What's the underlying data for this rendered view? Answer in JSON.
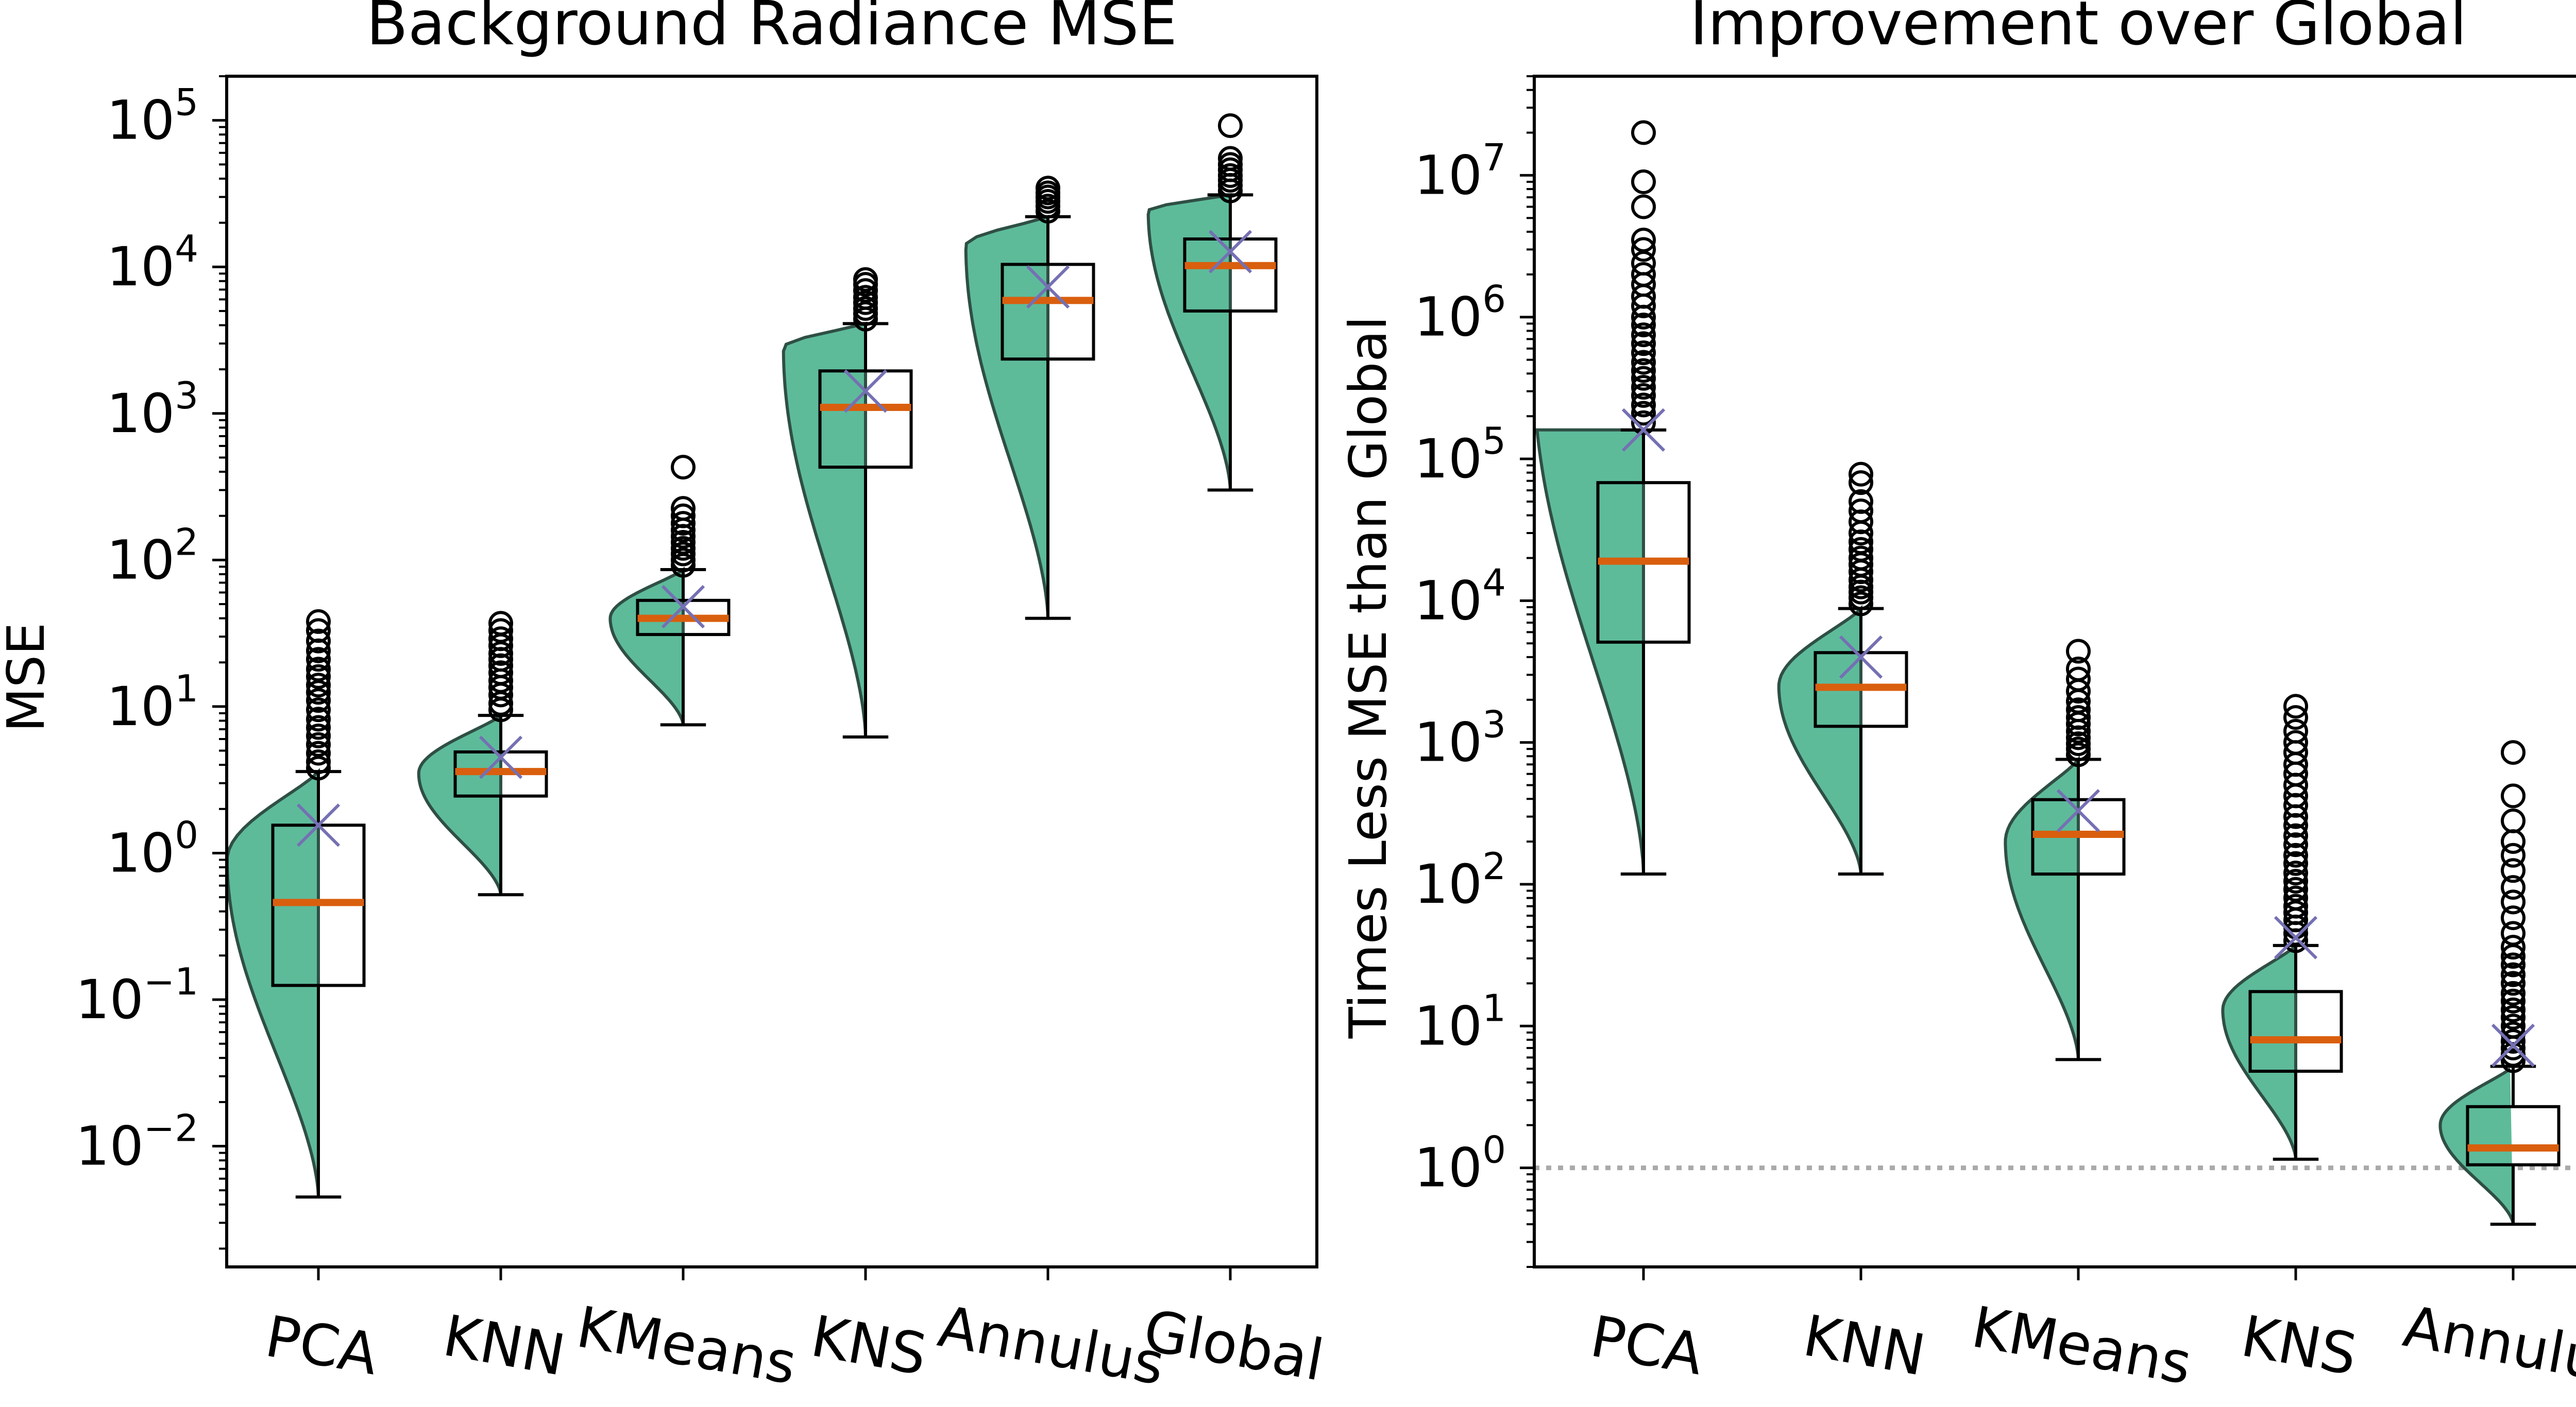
{
  "chart_data": [
    {
      "type": "box-violin",
      "title": "Background Radiance MSE",
      "xlabel": "",
      "ylabel": "MSE",
      "yscale": "log",
      "ylim": [
        0.0015,
        200000
      ],
      "yticks": [
        {
          "value": 0.01,
          "base": "10",
          "exp": "−2"
        },
        {
          "value": 0.1,
          "base": "10",
          "exp": "−1"
        },
        {
          "value": 1,
          "base": "10",
          "exp": "0"
        },
        {
          "value": 10,
          "base": "10",
          "exp": "1"
        },
        {
          "value": 100,
          "base": "10",
          "exp": "2"
        },
        {
          "value": 1000,
          "base": "10",
          "exp": "3"
        },
        {
          "value": 10000,
          "base": "10",
          "exp": "4"
        },
        {
          "value": 100000,
          "base": "10",
          "exp": "5"
        }
      ],
      "categories": [
        "PCA",
        "KNN",
        "KMeans",
        "KNS",
        "Annulus",
        "Global"
      ],
      "boxes": [
        {
          "name": "PCA",
          "whisker_low": 0.0045,
          "q1": 0.125,
          "median": 0.46,
          "q3": 1.55,
          "whisker_high": 3.6,
          "mean": 1.55,
          "violin_max_half_width": 0.5,
          "violin_peak_at": 0.9,
          "outliers": [
            3.8,
            4.2,
            4.8,
            5.5,
            6.3,
            7.2,
            8.2,
            9.5,
            11,
            12.5,
            14,
            16,
            18,
            21,
            24,
            28,
            33,
            38
          ]
        },
        {
          "name": "KNN",
          "whisker_low": 0.52,
          "q1": 2.45,
          "median": 3.6,
          "q3": 4.9,
          "whisker_high": 8.7,
          "mean": 4.5,
          "violin_max_half_width": 0.45,
          "violin_peak_at": 3.5,
          "outliers": [
            9.5,
            10.5,
            12,
            13.5,
            15,
            17,
            19,
            21,
            23,
            26,
            29,
            33,
            37
          ]
        },
        {
          "name": "KMeans",
          "whisker_low": 7.5,
          "q1": 31,
          "median": 40,
          "q3": 53,
          "whisker_high": 86,
          "mean": 48,
          "violin_max_half_width": 0.4,
          "violin_peak_at": 40,
          "outliers": [
            92,
            100,
            110,
            120,
            132,
            145,
            160,
            178,
            200,
            225,
            430
          ]
        },
        {
          "name": "KNS",
          "whisker_low": 6.2,
          "q1": 430,
          "median": 1100,
          "q3": 1950,
          "whisker_high": 4100,
          "mean": 1420,
          "violin_max_half_width": 0.45,
          "violin_peak_at": 2800,
          "outliers": [
            4400,
            4800,
            5200,
            5700,
            6200,
            6900,
            7600,
            8200
          ]
        },
        {
          "name": "Annulus",
          "whisker_low": 40,
          "q1": 2350,
          "median": 5900,
          "q3": 10400,
          "whisker_high": 22000,
          "mean": 7300,
          "violin_max_half_width": 0.45,
          "violin_peak_at": 14000,
          "outliers": [
            24000,
            26000,
            28000,
            30000,
            32000,
            34500
          ]
        },
        {
          "name": "Global",
          "whisker_low": 300,
          "q1": 5000,
          "median": 10200,
          "q3": 15500,
          "whisker_high": 31000,
          "mean": 12700,
          "violin_max_half_width": 0.45,
          "violin_peak_at": 24000,
          "outliers": [
            33000,
            36000,
            39000,
            42000,
            46000,
            50000,
            55000,
            92000
          ]
        }
      ]
    },
    {
      "type": "box-violin",
      "title": "Improvement over Global",
      "xlabel": "",
      "ylabel": "Times Less MSE than Global",
      "yscale": "log",
      "ylim": [
        0.2,
        50000000
      ],
      "yticks": [
        {
          "value": 1,
          "base": "10",
          "exp": "0"
        },
        {
          "value": 10,
          "base": "10",
          "exp": "1"
        },
        {
          "value": 100,
          "base": "10",
          "exp": "2"
        },
        {
          "value": 1000,
          "base": "10",
          "exp": "3"
        },
        {
          "value": 10000,
          "base": "10",
          "exp": "4"
        },
        {
          "value": 100000,
          "base": "10",
          "exp": "5"
        },
        {
          "value": 1000000,
          "base": "10",
          "exp": "6"
        },
        {
          "value": 10000000,
          "base": "10",
          "exp": "7"
        }
      ],
      "reference_line": {
        "value": 1,
        "style": "dotted",
        "color": "#aaaaaa"
      },
      "categories": [
        "PCA",
        "KNN",
        "KMeans",
        "KNS",
        "Annulus"
      ],
      "boxes": [
        {
          "name": "PCA",
          "whisker_low": 118,
          "q1": 5100,
          "median": 19000,
          "q3": 68000,
          "whisker_high": 160000,
          "mean": 160000,
          "violin_max_half_width": 0.6,
          "violin_peak_at": 420000,
          "outliers": [
            180000,
            210000,
            240000,
            280000,
            320000,
            370000,
            420000,
            480000,
            560000,
            650000,
            750000,
            880000,
            1000000,
            1200000,
            1400000,
            1700000,
            2000000,
            2400000,
            3000000,
            3500000,
            6000000,
            9000000,
            20000000
          ]
        },
        {
          "name": "KNN",
          "whisker_low": 118,
          "q1": 1300,
          "median": 2450,
          "q3": 4300,
          "whisker_high": 8800,
          "mean": 4000,
          "violin_max_half_width": 0.45,
          "violin_peak_at": 2500,
          "outliers": [
            9500,
            10500,
            11500,
            12500,
            14000,
            16000,
            18000,
            20000,
            23000,
            26000,
            30000,
            36000,
            43000,
            50000,
            68000,
            78000
          ]
        },
        {
          "name": "KMeans",
          "whisker_low": 5.8,
          "q1": 118,
          "median": 225,
          "q3": 395,
          "whisker_high": 760,
          "mean": 330,
          "violin_max_half_width": 0.4,
          "violin_peak_at": 200,
          "outliers": [
            820,
            900,
            980,
            1080,
            1200,
            1350,
            1500,
            1700,
            1950,
            2300,
            2800,
            3300,
            4400
          ]
        },
        {
          "name": "KNS",
          "whisker_low": 1.15,
          "q1": 4.8,
          "median": 8,
          "q3": 17.5,
          "whisker_high": 37,
          "mean": 42,
          "violin_max_half_width": 0.4,
          "violin_peak_at": 13,
          "outliers": [
            40,
            45,
            50,
            56,
            63,
            70,
            80,
            92,
            105,
            120,
            140,
            160,
            190,
            220,
            260,
            300,
            360,
            420,
            500,
            600,
            700,
            850,
            1000,
            1200,
            1500,
            1800
          ]
        },
        {
          "name": "Annulus",
          "whisker_low": 0.4,
          "q1": 1.05,
          "median": 1.38,
          "q3": 2.7,
          "whisker_high": 5.2,
          "mean": 7.3,
          "violin_max_half_width": 0.4,
          "violin_peak_at": 2,
          "outliers": [
            5.7,
            6.3,
            7,
            7.8,
            8.8,
            10,
            11.5,
            13,
            15,
            17,
            20,
            23,
            27,
            31,
            36,
            45,
            58,
            75,
            95,
            125,
            160,
            200,
            280,
            420,
            850
          ]
        }
      ]
    }
  ],
  "colors": {
    "violin_fill": "#5dbb9a",
    "violin_edge": "#2f4f45",
    "median": "#d95f0e",
    "mean_marker": "#7570b3",
    "box_edge": "#000000",
    "reference_line": "#aaaaaa"
  }
}
